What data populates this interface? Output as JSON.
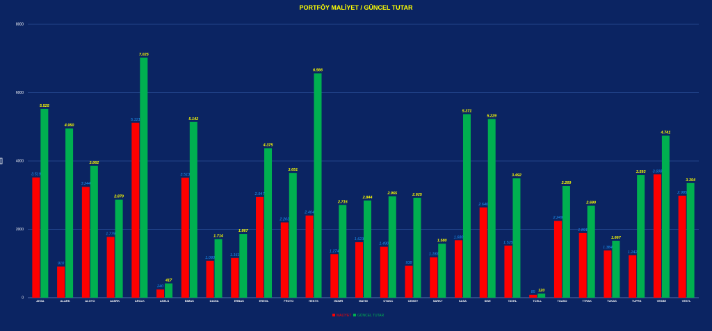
{
  "colors": {
    "background": "#0b2462",
    "cost": "#ff0000",
    "current": "#00b050",
    "title": "#ffff00",
    "cost_label": "#1e9bff",
    "current_label": "#ffff00",
    "grid": "#2d4f9a",
    "axis_text": "#ffffff"
  },
  "chart_data": {
    "type": "bar",
    "title": "PORTFÖY  MALİYET / GÜNCEL TUTAR",
    "categories": [
      "AKSA",
      "ALARK",
      "ALGYO",
      "ALBRK",
      "ARCLK",
      "ASELS",
      "BIMAS",
      "DAGIA",
      "ERBAS",
      "EREGL",
      "FROTO",
      "HEKTS",
      "ISDMR",
      "MAVIN",
      "OYAKC",
      "CEMGY",
      "SARKY",
      "SASA",
      "SISE",
      "TAVHL",
      "TCELL",
      "TOASO",
      "TTRAK",
      "TUKAS",
      "TUPRS",
      "VESBE",
      "VESTL"
    ],
    "series": [
      {
        "name": "MALİYET",
        "values": [
          3519,
          910,
          3244,
          1779,
          5121,
          240,
          3513,
          1080,
          1161,
          2947,
          2203,
          2404,
          1274,
          1623,
          1490,
          938,
          1183,
          1680,
          2640,
          1525,
          85,
          2249,
          1891,
          1384,
          1242,
          3608,
          2985
        ],
        "labels": [
          "3.519",
          "910",
          "3.244",
          "1.779",
          "5.121",
          "240",
          "3.513",
          "1.080",
          "1.161",
          "2.947",
          "2.203",
          "2.404",
          "1.274",
          "1.623",
          "1.490",
          "938",
          "1.183",
          "1.680",
          "2.640",
          "1.525",
          "85",
          "2.249",
          "1.891",
          "1.384",
          "1.242",
          "3.608",
          "2.985"
        ]
      },
      {
        "name": "GÜNCEL TUTAR",
        "values": [
          5525,
          4950,
          3862,
          2870,
          7025,
          417,
          5142,
          1714,
          1867,
          4375,
          3651,
          6566,
          2715,
          2844,
          2965,
          2925,
          1580,
          5371,
          5229,
          3492,
          120,
          3269,
          2690,
          1667,
          3593,
          4741,
          3354
        ],
        "labels": [
          "5.525",
          "4.950",
          "3.862",
          "2.870",
          "7.025",
          "417",
          "5.142",
          "1.714",
          "1.867",
          "4.375",
          "3.651",
          "6.566",
          "2.715",
          "2.844",
          "2.965",
          "2.925",
          "1.580",
          "5.371",
          "5.229",
          "3.492",
          "120",
          "3.269",
          "2.690",
          "1.667",
          "3.593",
          "4.741",
          "3.354"
        ]
      }
    ],
    "yticks": [
      "0",
      "2000",
      "4000",
      "6000",
      "8000"
    ],
    "ylim": [
      0,
      8000
    ],
    "grid": true,
    "legend": "bottom-center"
  }
}
